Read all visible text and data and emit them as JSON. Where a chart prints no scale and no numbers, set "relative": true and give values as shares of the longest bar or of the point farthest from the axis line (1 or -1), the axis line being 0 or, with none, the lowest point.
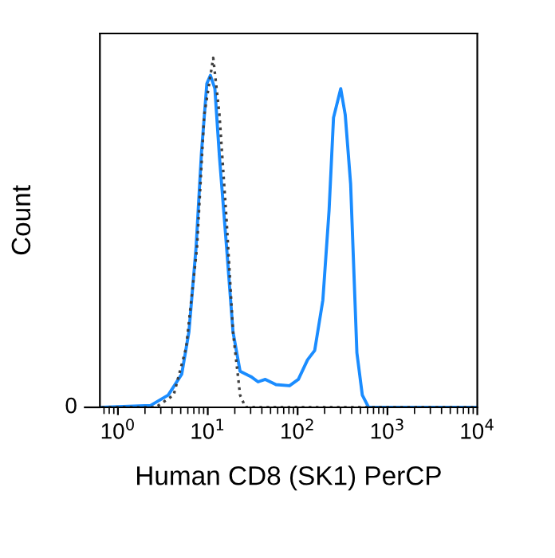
{
  "chart_data": {
    "type": "line",
    "xlabel": "Human CD8 (SK1) PerCP",
    "ylabel": "Count",
    "relative": true,
    "log": "x",
    "xlim": [
      0.63,
      10000
    ],
    "xticks": [
      {
        "value": 1,
        "label": "10$^{0}$"
      },
      {
        "value": 10,
        "label": "10$^{1}$"
      },
      {
        "value": 100,
        "label": "10$^{2}$"
      },
      {
        "value": 1000,
        "label": "10$^{3}$"
      },
      {
        "value": 10000,
        "label": "10$^{4}$"
      }
    ],
    "annotations": [
      "0"
    ],
    "grid": false,
    "marker": "none",
    "series": [
      {
        "color": "#1a8cff",
        "line_style": "solid",
        "x": [
          0.66,
          2.29,
          3.63,
          5.13,
          6.17,
          7.41,
          8.51,
          9.77,
          10.7,
          12.0,
          13.5,
          16.2,
          19.1,
          22.9,
          30.2,
          36.3,
          43.7,
          57.5,
          81.3,
          102,
          129,
          155,
          191,
          224,
          251,
          302,
          339,
          389,
          457,
          525,
          617,
          10000
        ],
        "values": [
          0,
          0.005,
          0.035,
          0.095,
          0.216,
          0.458,
          0.73,
          0.927,
          0.95,
          0.912,
          0.716,
          0.458,
          0.216,
          0.103,
          0.088,
          0.073,
          0.08,
          0.065,
          0.062,
          0.08,
          0.136,
          0.163,
          0.307,
          0.564,
          0.829,
          0.912,
          0.837,
          0.64,
          0.156,
          0.035,
          0,
          0
        ]
      },
      {
        "color": "#404040",
        "line_style": "dotted",
        "x": [
          0.66,
          2.63,
          4.17,
          5.75,
          7.59,
          9.12,
          11.5,
          13.5,
          16.2,
          19.1,
          22.9,
          26.3,
          10000
        ],
        "values": [
          0,
          0,
          0.035,
          0.171,
          0.458,
          0.836,
          1.0,
          0.836,
          0.534,
          0.216,
          0.035,
          0,
          0
        ]
      }
    ]
  }
}
